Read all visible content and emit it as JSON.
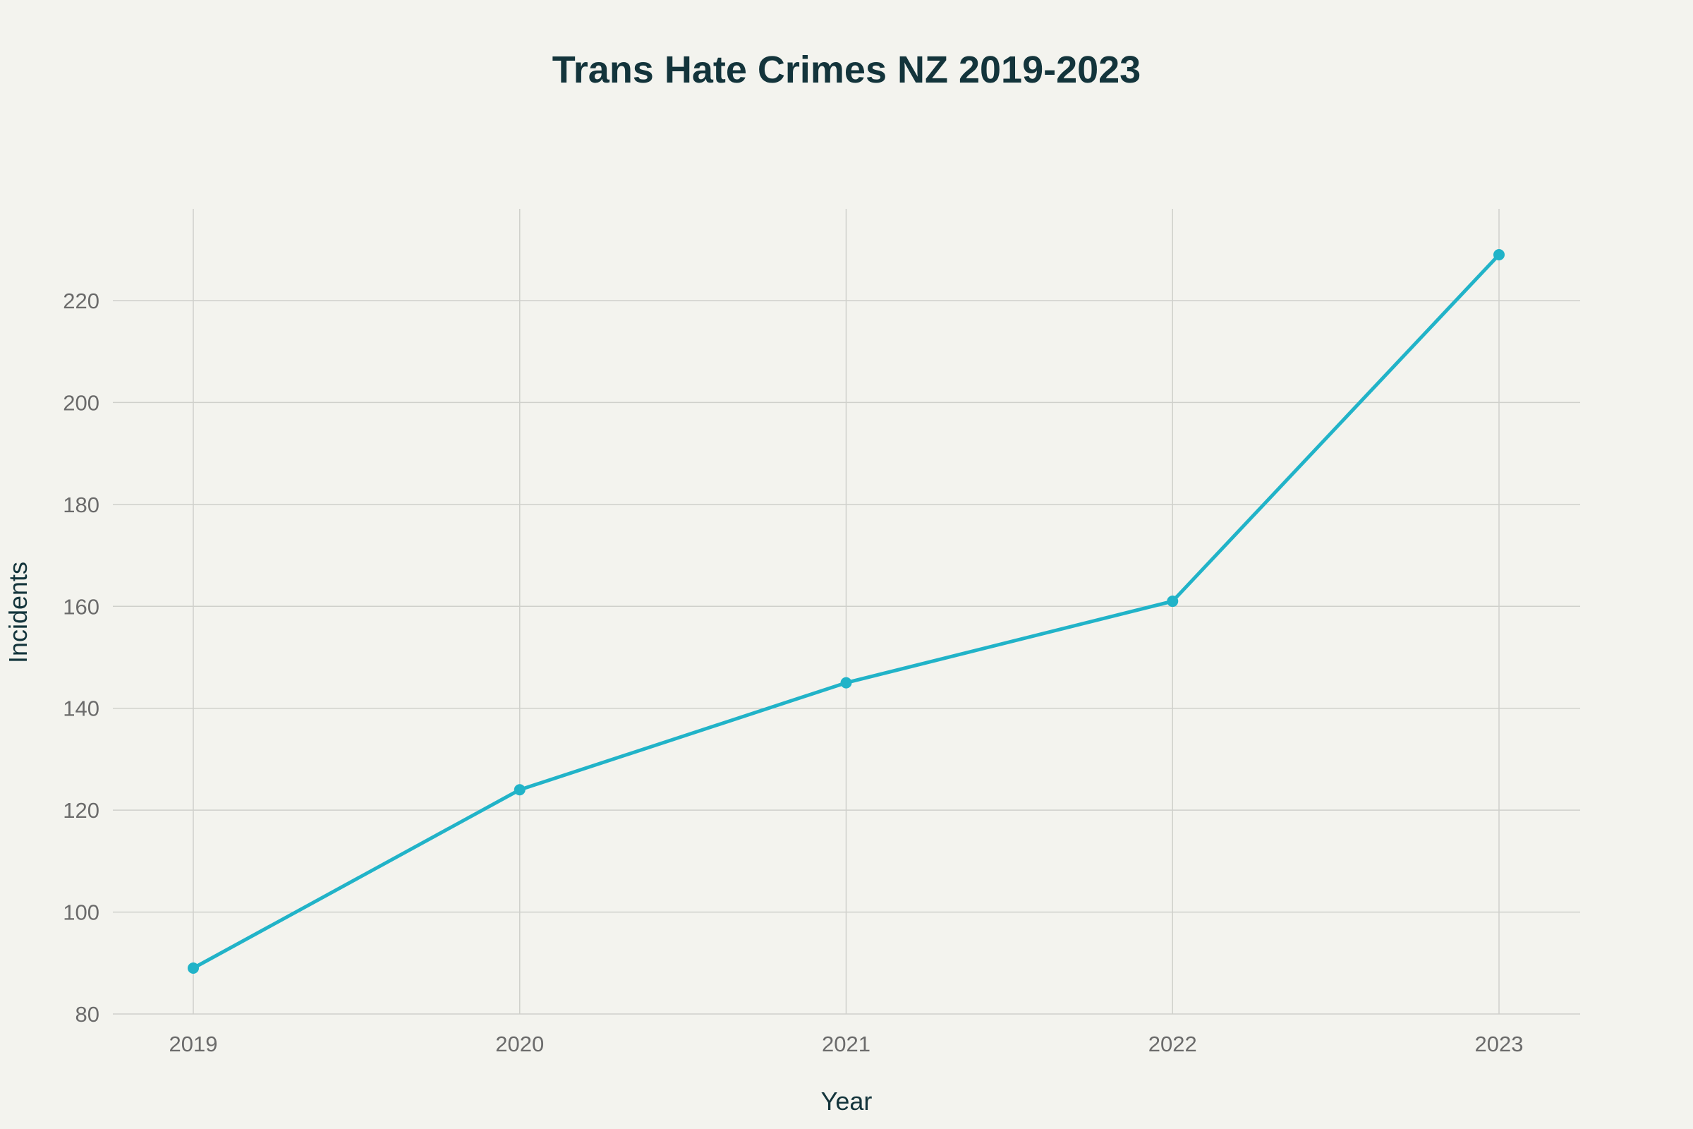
{
  "chart_data": {
    "type": "line",
    "title": "Trans Hate Crimes NZ 2019-2023",
    "xlabel": "Year",
    "ylabel": "Incidents",
    "categories": [
      "2019",
      "2020",
      "2021",
      "2022",
      "2023"
    ],
    "series": [
      {
        "values": [
          89,
          124,
          145,
          161,
          229
        ],
        "color": "#21b3c8"
      }
    ],
    "ylim": [
      80,
      238
    ],
    "yticks": [
      80,
      100,
      120,
      140,
      160,
      180,
      200,
      220
    ],
    "grid": true,
    "legend": "none"
  }
}
